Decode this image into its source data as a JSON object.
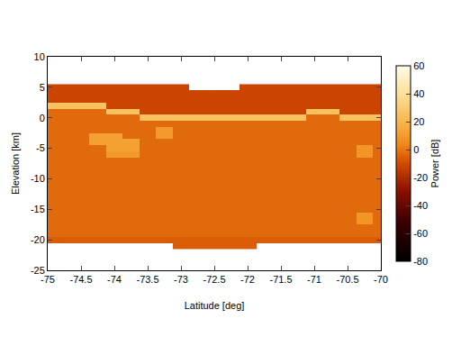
{
  "chart_data": {
    "type": "heatmap",
    "x_label": "Latitude [deg]",
    "y_label": "Elevation [km]",
    "xlim": [
      -75,
      -70
    ],
    "xticks": [
      -75,
      -74.5,
      -74,
      -73.5,
      -73,
      -72.5,
      -72,
      -71.5,
      -71,
      -70.5,
      -70
    ],
    "ylim": [
      -25,
      10
    ],
    "yticks": [
      -25,
      -20,
      -15,
      -10,
      -5,
      0,
      5,
      10
    ],
    "x": [
      -75,
      -74.75,
      -74.5,
      -74.25,
      -74,
      -73.75,
      -73.5,
      -73.25,
      -73,
      -72.75,
      -72.5,
      -72.25,
      -72,
      -71.75,
      -71.5,
      -71.25,
      -71,
      -70.75,
      -70.5,
      -70.25,
      -70
    ],
    "y": [
      -21,
      -20,
      -19,
      -18,
      -17,
      -16,
      -15,
      -14,
      -13,
      -12,
      -11,
      -10,
      -9,
      -8,
      -7,
      -6,
      -5,
      -4,
      -3,
      -2,
      -1,
      0,
      1,
      2,
      3,
      4,
      5
    ],
    "z": [
      [
        null,
        null,
        null,
        null,
        null,
        null,
        null,
        null,
        -6,
        -6,
        -6,
        -6,
        -6,
        null,
        null,
        null,
        null,
        null,
        null,
        null,
        null
      ],
      [
        -6,
        -6,
        -6,
        -6,
        -6,
        -6,
        -6,
        -6,
        -6,
        -6,
        -6,
        -6,
        -6,
        -6,
        -6,
        -6,
        -6,
        -6,
        -6,
        -6,
        -6
      ],
      [
        -3,
        -3,
        -3,
        -3,
        -3,
        -3,
        -3,
        -3,
        -3,
        -3,
        -3,
        -3,
        -3,
        -3,
        -3,
        -3,
        -3,
        -3,
        -3,
        -3,
        -3
      ],
      [
        -3,
        -3,
        -3,
        -3,
        -3,
        -3,
        -3,
        -3,
        -3,
        -3,
        -3,
        -3,
        -3,
        -3,
        -3,
        -3,
        -3,
        -3,
        -3,
        -3,
        -3
      ],
      [
        -3,
        -3,
        -3,
        -3,
        -3,
        -3,
        -3,
        -3,
        -3,
        -3,
        -3,
        -3,
        -3,
        -3,
        -3,
        -3,
        -3,
        -3,
        -3,
        8,
        -3
      ],
      [
        -3,
        -3,
        -3,
        -3,
        -3,
        -3,
        -3,
        -3,
        -3,
        -3,
        -3,
        -3,
        -3,
        -3,
        -3,
        -3,
        -3,
        -3,
        -3,
        8,
        -3
      ],
      [
        -3,
        -3,
        -3,
        -3,
        -3,
        -3,
        -3,
        -3,
        -3,
        -3,
        -3,
        -3,
        -3,
        -3,
        -3,
        -3,
        -3,
        -3,
        -3,
        -3,
        -3
      ],
      [
        -3,
        -3,
        -3,
        -3,
        -3,
        -3,
        -3,
        -3,
        -3,
        -3,
        -3,
        -3,
        -3,
        -3,
        -3,
        -3,
        -3,
        -3,
        -3,
        -3,
        -3
      ],
      [
        -3,
        -3,
        -3,
        -3,
        -3,
        -3,
        -3,
        -3,
        -3,
        -3,
        -3,
        -3,
        -3,
        -3,
        -3,
        -3,
        -3,
        -3,
        -3,
        -3,
        -3
      ],
      [
        -3,
        -3,
        -3,
        -3,
        -3,
        -3,
        -3,
        -3,
        -3,
        -3,
        -3,
        -3,
        -3,
        -3,
        -3,
        -3,
        -3,
        -3,
        -3,
        -3,
        -3
      ],
      [
        -3,
        -3,
        -3,
        -3,
        -3,
        -3,
        -3,
        -3,
        -3,
        -3,
        -3,
        -3,
        -3,
        -3,
        -3,
        -3,
        -3,
        -3,
        -3,
        -3,
        -3
      ],
      [
        -3,
        -3,
        -3,
        -3,
        -3,
        -3,
        -3,
        -3,
        -3,
        -3,
        -3,
        -3,
        -3,
        -3,
        -3,
        -3,
        -3,
        -3,
        -3,
        -3,
        -3
      ],
      [
        -3,
        -3,
        -3,
        -3,
        -3,
        -3,
        -3,
        -3,
        -3,
        -3,
        -3,
        -3,
        -3,
        -3,
        -3,
        -3,
        -3,
        -3,
        -3,
        -3,
        -3
      ],
      [
        -3,
        -3,
        -3,
        -3,
        -3,
        -3,
        -3,
        -3,
        -3,
        -3,
        -3,
        -3,
        -3,
        -3,
        -3,
        -3,
        -3,
        -3,
        -3,
        -3,
        -3
      ],
      [
        -3,
        -3,
        -3,
        -3,
        -3,
        -3,
        -3,
        -3,
        -3,
        -3,
        -3,
        -3,
        -3,
        -3,
        -3,
        -3,
        -3,
        -3,
        -3,
        -3,
        -3
      ],
      [
        -3,
        -3,
        -3,
        -3,
        10,
        10,
        -3,
        -3,
        -3,
        -3,
        -3,
        -3,
        -3,
        -3,
        -3,
        -3,
        -3,
        -3,
        -3,
        8,
        -3
      ],
      [
        -3,
        -3,
        -3,
        -3,
        12,
        12,
        -3,
        -3,
        -3,
        -3,
        -3,
        -3,
        -3,
        -3,
        -3,
        -3,
        -3,
        -3,
        -3,
        8,
        -3
      ],
      [
        -3,
        -3,
        -3,
        12,
        12,
        12,
        -3,
        -3,
        -3,
        -3,
        -3,
        -3,
        -3,
        -3,
        -3,
        -3,
        -3,
        -3,
        -3,
        -3,
        -3
      ],
      [
        -3,
        -3,
        -3,
        12,
        12,
        -3,
        -3,
        10,
        -3,
        -3,
        -3,
        -3,
        -3,
        -3,
        -3,
        -3,
        -3,
        -3,
        -3,
        -3,
        -3
      ],
      [
        -3,
        -3,
        -3,
        -3,
        -3,
        -3,
        -3,
        10,
        -3,
        -3,
        -3,
        -3,
        -3,
        -3,
        -3,
        -3,
        -3,
        -3,
        -3,
        -3,
        -3
      ],
      [
        -3,
        -3,
        -3,
        -3,
        -3,
        -3,
        -3,
        -3,
        -3,
        -3,
        -3,
        -3,
        -3,
        -3,
        -3,
        -3,
        -3,
        -3,
        -3,
        -3,
        -3
      ],
      [
        -3,
        -3,
        -3,
        -3,
        -3,
        -3,
        25,
        25,
        25,
        25,
        25,
        25,
        25,
        25,
        25,
        25,
        -3,
        -3,
        25,
        25,
        25
      ],
      [
        -3,
        -3,
        -3,
        -3,
        25,
        25,
        -12,
        -12,
        -12,
        -12,
        -12,
        -12,
        -12,
        -12,
        -12,
        -12,
        25,
        25,
        -12,
        -12,
        -12
      ],
      [
        25,
        25,
        25,
        25,
        -12,
        -12,
        -12,
        -12,
        -12,
        -12,
        -12,
        -12,
        -12,
        -12,
        -12,
        -12,
        -12,
        -12,
        -12,
        -12,
        -12
      ],
      [
        -12,
        -12,
        -12,
        -12,
        -12,
        -12,
        -12,
        -12,
        -12,
        -12,
        -12,
        -12,
        -12,
        -12,
        -12,
        -12,
        -12,
        -12,
        -12,
        -12,
        -12
      ],
      [
        -12,
        -12,
        -12,
        -12,
        -12,
        -12,
        -12,
        -12,
        -12,
        -12,
        -12,
        -12,
        -12,
        -12,
        -12,
        -12,
        -12,
        -12,
        -12,
        -12,
        -12
      ],
      [
        -12,
        -12,
        -12,
        -12,
        -12,
        -12,
        -12,
        -12,
        -12,
        null,
        null,
        null,
        -12,
        -12,
        -12,
        -12,
        -12,
        -12,
        -12,
        -12,
        -12
      ]
    ],
    "colorbar": {
      "title": "Power [dB]",
      "range": [
        -80,
        60
      ],
      "ticks": [
        -80,
        -60,
        -40,
        -20,
        0,
        20,
        40,
        60
      ]
    }
  }
}
